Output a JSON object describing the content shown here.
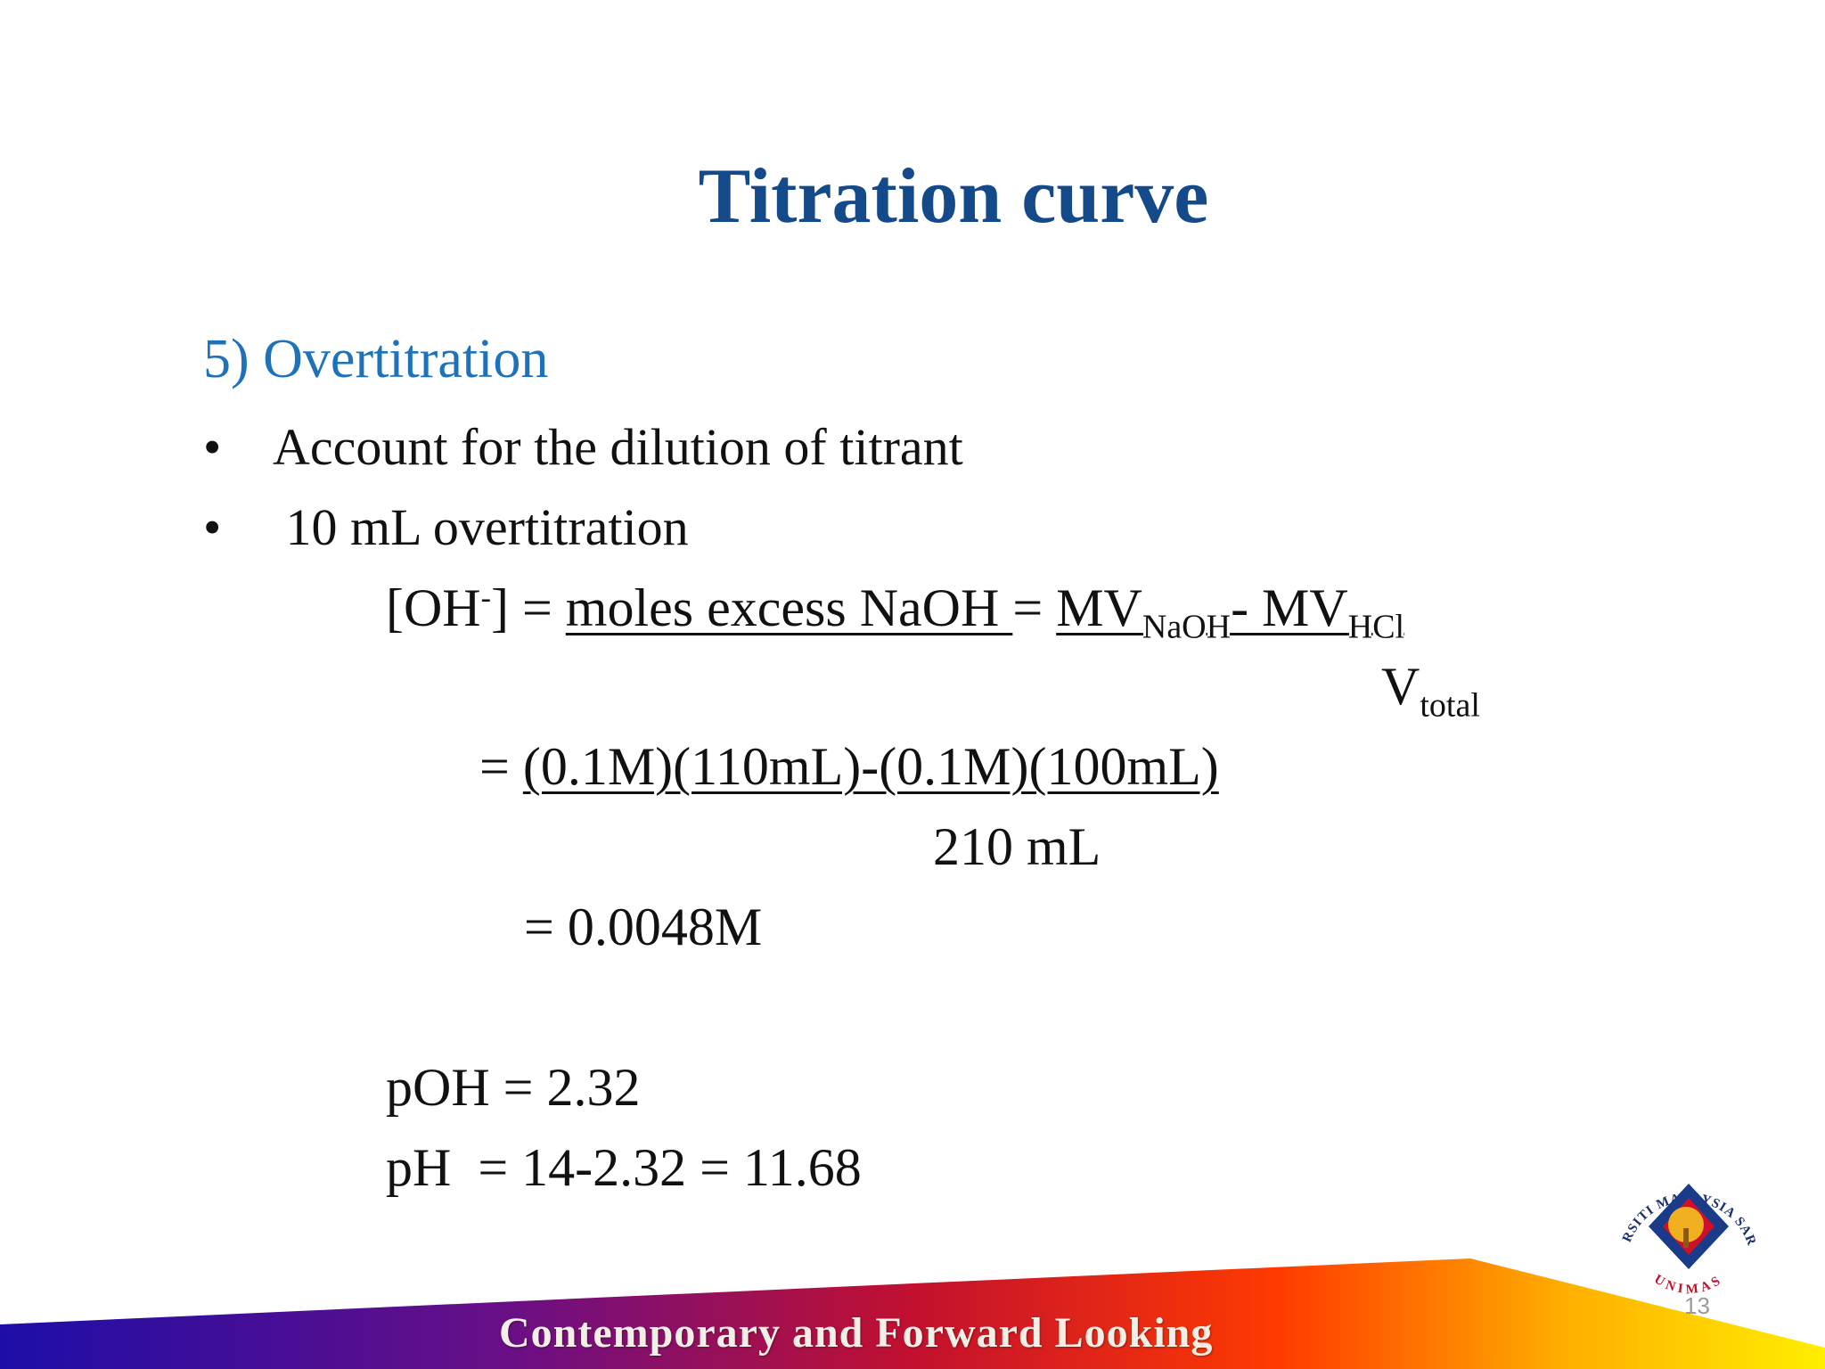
{
  "slide": {
    "title": "Titration curve",
    "subheading": "5) Overtitration",
    "bullets": [
      "Account for the dilution of titrant",
      " 10 mL overtitration"
    ],
    "equation": {
      "oh_lhs": "[OH",
      "oh_sup": "-",
      "oh_close": "] = ",
      "moles_excess": "moles excess NaOH ",
      "eq1": "= ",
      "mv": "MV",
      "naoh_sub": "NaOH",
      "minus_mv": "- MV",
      "hcl_sub": "HCl",
      "v": "V",
      "total_sub": "total",
      "eq2_prefix": "= ",
      "numerator": "(0.1M)(110mL)-(0.1M)(100mL)",
      "denominator": "210 mL",
      "result": "= 0.0048M",
      "poh": "pOH = 2.32",
      "ph": "pH  = 14-2.32 = 11.68"
    },
    "footer_slogan": "Contemporary and Forward Looking",
    "logo_text_top": "UNIVERSITI MALAYSIA SARAWAK",
    "logo_text_bottom": "UNIMAS",
    "page_number": "13"
  },
  "colors": {
    "title": "#154a8a",
    "subheading": "#1e72ba",
    "body_text": "#111111"
  }
}
